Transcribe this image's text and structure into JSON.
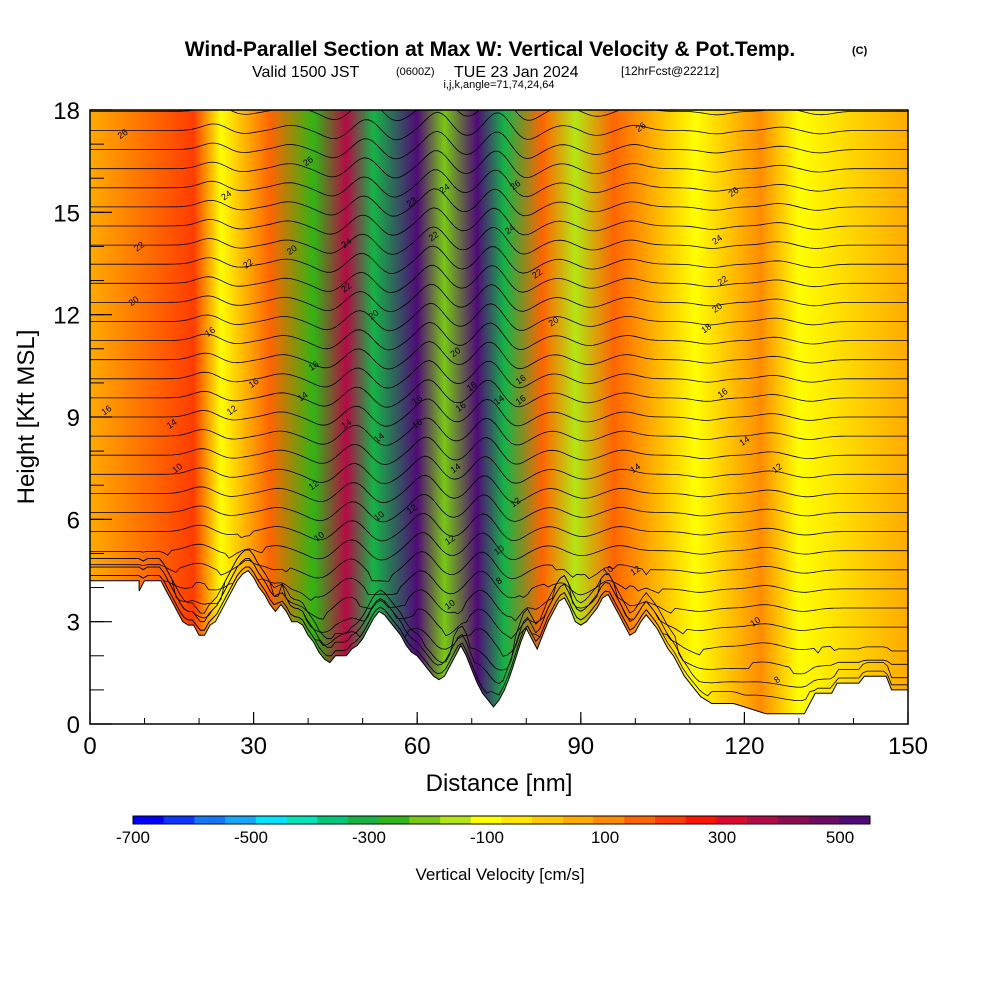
{
  "header": {
    "title": "Wind-Parallel Section at Max W: Vertical Velocity & Pot.Temp.",
    "copyright": "(C)",
    "valid_prefix": "Valid 1500 JST",
    "valid_utc": "(0600Z)",
    "valid_date": "TUE 23 Jan 2024",
    "forecast": "[12hrFcst@2221z]",
    "indices": "i,j,k,angle=71,74,24,64"
  },
  "colorbar": {
    "label": "Vertical Velocity [cm/s]",
    "tick_labels": [
      "-700",
      "-500",
      "-300",
      "-100",
      "100",
      "300",
      "500"
    ],
    "colors": [
      "#0000ff",
      "#0a36ff",
      "#0f78f5",
      "#13a8ff",
      "#00e6ff",
      "#00e6b8",
      "#00c878",
      "#14b446",
      "#32b414",
      "#78c814",
      "#b4e614",
      "#ffff00",
      "#ffe600",
      "#ffc800",
      "#ffaa00",
      "#ff8c00",
      "#ff6400",
      "#ff3c00",
      "#ff1400",
      "#dc0a32",
      "#b40a46",
      "#8c0a50",
      "#6e0a64",
      "#500a78"
    ]
  },
  "chart_data": {
    "type": "heatmap",
    "title": "Wind-Parallel Section at Max W: Vertical Velocity & Pot.Temp.",
    "xlabel": "Distance [nm]",
    "ylabel": "Height [Kft MSL]",
    "xlim": [
      0,
      150
    ],
    "ylim": [
      0,
      18
    ],
    "x_ticks": [
      0,
      30,
      60,
      90,
      120,
      150
    ],
    "y_ticks": [
      0,
      3,
      6,
      9,
      12,
      15,
      18
    ],
    "colorbar_range": [
      -700,
      550
    ],
    "fill_variable": "Vertical Velocity [cm/s]",
    "contour_variable": "Potential temperature",
    "vertical_velocity_bands": [
      {
        "x": 19,
        "value": 200
      },
      {
        "x": 24,
        "value": -100
      },
      {
        "x": 33,
        "value": 150
      },
      {
        "x": 41,
        "value": -250
      },
      {
        "x": 47,
        "value": 350
      },
      {
        "x": 52,
        "value": -300
      },
      {
        "x": 60,
        "value": 550
      },
      {
        "x": 65,
        "value": -200
      },
      {
        "x": 71,
        "value": 550
      },
      {
        "x": 76,
        "value": -300
      },
      {
        "x": 83,
        "value": 150
      },
      {
        "x": 89,
        "value": -150
      },
      {
        "x": 96,
        "value": 150
      },
      {
        "x": 111,
        "value": -100
      },
      {
        "x": 123,
        "value": 100
      },
      {
        "x": 130,
        "value": -100
      }
    ],
    "contour_labels": [
      {
        "x": 6,
        "y": 17.3,
        "text": "26"
      },
      {
        "x": 25,
        "y": 15.5,
        "text": "24"
      },
      {
        "x": 40,
        "y": 16.5,
        "text": "26"
      },
      {
        "x": 9,
        "y": 14.0,
        "text": "22"
      },
      {
        "x": 8,
        "y": 12.4,
        "text": "20"
      },
      {
        "x": 29,
        "y": 13.5,
        "text": "22"
      },
      {
        "x": 37,
        "y": 13.9,
        "text": "20"
      },
      {
        "x": 47,
        "y": 14.1,
        "text": "24"
      },
      {
        "x": 47,
        "y": 12.8,
        "text": "22"
      },
      {
        "x": 52,
        "y": 12.0,
        "text": "20"
      },
      {
        "x": 59,
        "y": 15.3,
        "text": "23"
      },
      {
        "x": 63,
        "y": 14.3,
        "text": "22"
      },
      {
        "x": 65,
        "y": 15.7,
        "text": "24"
      },
      {
        "x": 78,
        "y": 15.8,
        "text": "26"
      },
      {
        "x": 77,
        "y": 14.5,
        "text": "24"
      },
      {
        "x": 82,
        "y": 13.2,
        "text": "22"
      },
      {
        "x": 85,
        "y": 11.8,
        "text": "20"
      },
      {
        "x": 67,
        "y": 10.9,
        "text": "20"
      },
      {
        "x": 101,
        "y": 17.5,
        "text": "26"
      },
      {
        "x": 118,
        "y": 15.6,
        "text": "26"
      },
      {
        "x": 115,
        "y": 14.2,
        "text": "24"
      },
      {
        "x": 116,
        "y": 13.0,
        "text": "22"
      },
      {
        "x": 115,
        "y": 12.2,
        "text": "20"
      },
      {
        "x": 113,
        "y": 11.6,
        "text": "18"
      },
      {
        "x": 22,
        "y": 11.5,
        "text": "16"
      },
      {
        "x": 30,
        "y": 10.0,
        "text": "16"
      },
      {
        "x": 41,
        "y": 10.5,
        "text": "16"
      },
      {
        "x": 3,
        "y": 9.2,
        "text": "16"
      },
      {
        "x": 15,
        "y": 8.8,
        "text": "14"
      },
      {
        "x": 26,
        "y": 9.2,
        "text": "12"
      },
      {
        "x": 39,
        "y": 9.6,
        "text": "14"
      },
      {
        "x": 47,
        "y": 8.8,
        "text": "14"
      },
      {
        "x": 53,
        "y": 8.4,
        "text": "14"
      },
      {
        "x": 60,
        "y": 9.5,
        "text": "16"
      },
      {
        "x": 60,
        "y": 8.8,
        "text": "16"
      },
      {
        "x": 68,
        "y": 9.3,
        "text": "16"
      },
      {
        "x": 70,
        "y": 9.9,
        "text": "16"
      },
      {
        "x": 75,
        "y": 9.5,
        "text": "14"
      },
      {
        "x": 79,
        "y": 9.5,
        "text": "16"
      },
      {
        "x": 79,
        "y": 10.1,
        "text": "16"
      },
      {
        "x": 116,
        "y": 9.7,
        "text": "16"
      },
      {
        "x": 120,
        "y": 8.3,
        "text": "14"
      },
      {
        "x": 16,
        "y": 7.5,
        "text": "10"
      },
      {
        "x": 41,
        "y": 7.0,
        "text": "12"
      },
      {
        "x": 67,
        "y": 7.5,
        "text": "14"
      },
      {
        "x": 100,
        "y": 7.5,
        "text": "14"
      },
      {
        "x": 126,
        "y": 7.5,
        "text": "12"
      },
      {
        "x": 59,
        "y": 6.3,
        "text": "12"
      },
      {
        "x": 53,
        "y": 6.1,
        "text": "10"
      },
      {
        "x": 78,
        "y": 6.5,
        "text": "12"
      },
      {
        "x": 42,
        "y": 5.5,
        "text": "10"
      },
      {
        "x": 66,
        "y": 5.4,
        "text": "12"
      },
      {
        "x": 75,
        "y": 5.1,
        "text": "10"
      },
      {
        "x": 95,
        "y": 4.5,
        "text": "10"
      },
      {
        "x": 100,
        "y": 4.5,
        "text": "12"
      },
      {
        "x": 75,
        "y": 4.2,
        "text": "8"
      },
      {
        "x": 66,
        "y": 3.5,
        "text": "10"
      },
      {
        "x": 122,
        "y": 3.0,
        "text": "10"
      },
      {
        "x": 126,
        "y": 1.3,
        "text": "8"
      }
    ],
    "terrain_height_kft": [
      [
        0,
        4.2
      ],
      [
        9,
        4.2
      ],
      [
        9,
        3.9
      ],
      [
        10,
        4.2
      ],
      [
        13,
        4.2
      ],
      [
        14,
        3.9
      ],
      [
        15,
        3.6
      ],
      [
        16,
        3.3
      ],
      [
        17,
        3.0
      ],
      [
        18,
        2.9
      ],
      [
        19,
        2.9
      ],
      [
        20,
        2.6
      ],
      [
        21,
        2.6
      ],
      [
        22,
        2.9
      ],
      [
        23,
        3.0
      ],
      [
        24,
        3.3
      ],
      [
        25,
        3.6
      ],
      [
        26,
        3.9
      ],
      [
        27,
        4.2
      ],
      [
        28,
        4.4
      ],
      [
        29,
        4.5
      ],
      [
        30,
        4.3
      ],
      [
        31,
        4.0
      ],
      [
        32,
        3.8
      ],
      [
        33,
        3.5
      ],
      [
        34,
        3.3
      ],
      [
        35,
        3.5
      ],
      [
        36,
        3.3
      ],
      [
        37,
        3.0
      ],
      [
        38,
        3.0
      ],
      [
        39,
        2.9
      ],
      [
        40,
        2.6
      ],
      [
        41,
        2.4
      ],
      [
        42,
        2.1
      ],
      [
        43,
        1.9
      ],
      [
        44,
        1.8
      ],
      [
        45,
        2.0
      ],
      [
        46,
        2.0
      ],
      [
        47,
        2.0
      ],
      [
        48,
        2.2
      ],
      [
        49,
        2.3
      ],
      [
        50,
        2.5
      ],
      [
        51,
        2.8
      ],
      [
        52,
        3.1
      ],
      [
        53,
        3.3
      ],
      [
        54,
        3.2
      ],
      [
        55,
        3.0
      ],
      [
        56,
        2.8
      ],
      [
        57,
        2.6
      ],
      [
        58,
        2.3
      ],
      [
        59,
        2.1
      ],
      [
        60,
        2.0
      ],
      [
        61,
        1.8
      ],
      [
        62,
        1.6
      ],
      [
        63,
        1.4
      ],
      [
        64,
        1.3
      ],
      [
        65,
        1.4
      ],
      [
        66,
        1.7
      ],
      [
        67,
        2.0
      ],
      [
        68,
        2.3
      ],
      [
        69,
        2.0
      ],
      [
        70,
        1.6
      ],
      [
        71,
        1.2
      ],
      [
        72,
        0.9
      ],
      [
        73,
        0.7
      ],
      [
        74,
        0.5
      ],
      [
        75,
        0.7
      ],
      [
        76,
        1.0
      ],
      [
        77,
        1.4
      ],
      [
        78,
        1.9
      ],
      [
        79,
        2.4
      ],
      [
        80,
        2.8
      ],
      [
        81,
        2.5
      ],
      [
        82,
        2.2
      ],
      [
        83,
        2.6
      ],
      [
        84,
        3.0
      ],
      [
        85,
        3.3
      ],
      [
        86,
        3.6
      ],
      [
        87,
        3.7
      ],
      [
        88,
        3.4
      ],
      [
        89,
        3.0
      ],
      [
        90,
        2.9
      ],
      [
        91,
        3.0
      ],
      [
        92,
        3.2
      ],
      [
        93,
        3.4
      ],
      [
        94,
        3.7
      ],
      [
        95,
        3.8
      ],
      [
        96,
        3.5
      ],
      [
        97,
        3.2
      ],
      [
        98,
        2.9
      ],
      [
        99,
        2.6
      ],
      [
        100,
        2.7
      ],
      [
        101,
        3.0
      ],
      [
        102,
        3.2
      ],
      [
        103,
        3.0
      ],
      [
        104,
        2.8
      ],
      [
        105,
        2.5
      ],
      [
        106,
        2.2
      ],
      [
        107,
        2.0
      ],
      [
        108,
        1.7
      ],
      [
        109,
        1.4
      ],
      [
        110,
        1.2
      ],
      [
        111,
        1.0
      ],
      [
        112,
        0.8
      ],
      [
        113,
        0.7
      ],
      [
        114,
        0.6
      ],
      [
        118,
        0.6
      ],
      [
        120,
        0.5
      ],
      [
        122,
        0.4
      ],
      [
        124,
        0.3
      ],
      [
        131,
        0.3
      ],
      [
        132,
        0.6
      ],
      [
        133,
        0.9
      ],
      [
        136,
        0.9
      ],
      [
        137,
        1.2
      ],
      [
        141,
        1.2
      ],
      [
        142,
        1.4
      ],
      [
        146,
        1.4
      ],
      [
        147,
        1.0
      ],
      [
        150,
        1.0
      ]
    ]
  }
}
